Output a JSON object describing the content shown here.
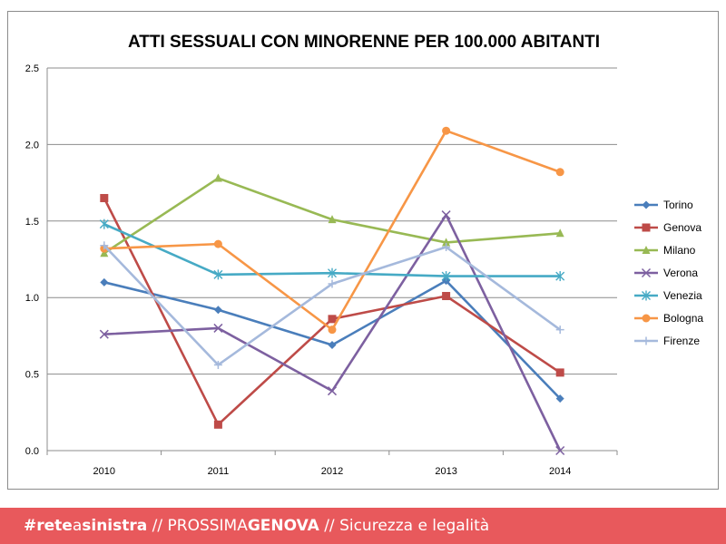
{
  "chart_data": {
    "type": "line",
    "title": "ATTI SESSUALI CON MINORENNE PER 100.000 ABITANTI",
    "xlabel": "",
    "ylabel": "",
    "categories": [
      "2010",
      "2011",
      "2012",
      "2013",
      "2014"
    ],
    "ylim": [
      0,
      2.5
    ],
    "yticks": [
      "0.0",
      "0.5",
      "1.0",
      "1.5",
      "2.0",
      "2.5"
    ],
    "grid": true,
    "legend": "right",
    "series": [
      {
        "name": "Torino",
        "color": "#4a7ebb",
        "marker": "diamond",
        "values": [
          1.1,
          0.92,
          0.69,
          1.11,
          0.34
        ]
      },
      {
        "name": "Genova",
        "color": "#be4b48",
        "marker": "square",
        "values": [
          1.65,
          0.17,
          0.86,
          1.01,
          0.51
        ]
      },
      {
        "name": "Milano",
        "color": "#98b954",
        "marker": "triangle",
        "values": [
          1.29,
          1.78,
          1.51,
          1.36,
          1.42
        ]
      },
      {
        "name": "Verona",
        "color": "#7d60a0",
        "marker": "x",
        "values": [
          0.76,
          0.8,
          0.39,
          1.54,
          0.0
        ]
      },
      {
        "name": "Venezia",
        "color": "#46aac5",
        "marker": "star",
        "values": [
          1.48,
          1.15,
          1.16,
          1.14,
          1.14
        ]
      },
      {
        "name": "Bologna",
        "color": "#f79646",
        "marker": "circle",
        "values": [
          1.32,
          1.35,
          0.79,
          2.09,
          1.82
        ]
      },
      {
        "name": "Firenze",
        "color": "#a5b9dc",
        "marker": "plus",
        "values": [
          1.34,
          0.56,
          1.09,
          1.33,
          0.79
        ]
      }
    ]
  },
  "footer": {
    "hashtag_bold": "#rete",
    "hashtag_light": "a",
    "hashtag_bold2": "sinistra",
    "sep1": " // ",
    "project_light": "PROSSIMA",
    "project_bold": "GENOVA",
    "sep2": " // ",
    "topic": "Sicurezza e legalità"
  }
}
